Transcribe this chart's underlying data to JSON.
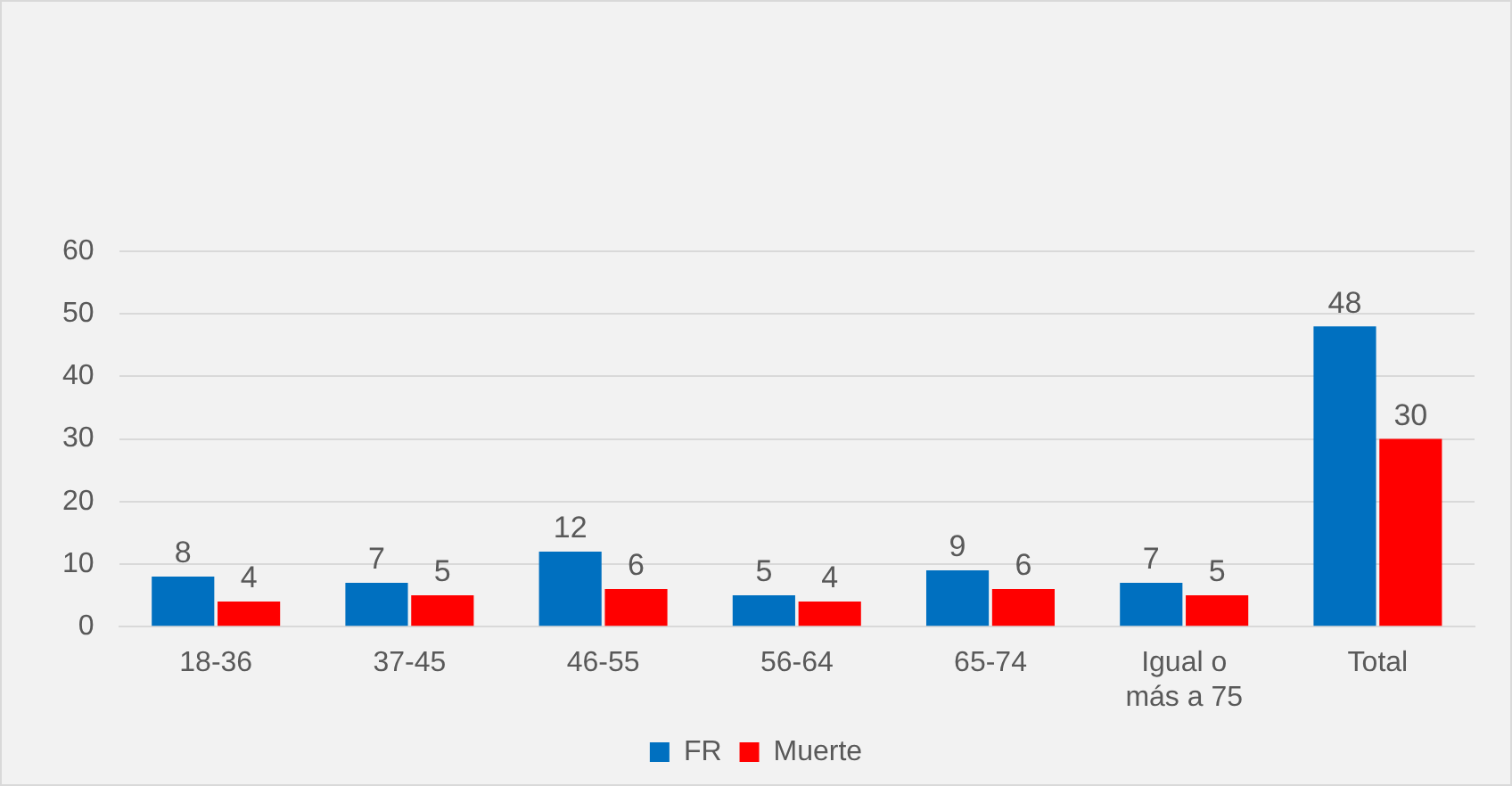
{
  "chart_data": {
    "type": "bar",
    "categories": [
      "18-36",
      "37-45",
      "46-55",
      "56-64",
      "65-74",
      "Igual o más a 75",
      "Total"
    ],
    "series": [
      {
        "name": "FR",
        "color": "#0070c0",
        "values": [
          8,
          7,
          12,
          5,
          9,
          7,
          48
        ]
      },
      {
        "name": "Muerte",
        "color": "#ff0000",
        "values": [
          4,
          5,
          6,
          4,
          6,
          5,
          30
        ]
      }
    ],
    "ylim": [
      0,
      60
    ],
    "yticks": [
      0,
      10,
      20,
      30,
      40,
      50,
      60
    ],
    "grid": "y",
    "legend": "bottom",
    "data_labels": true
  }
}
